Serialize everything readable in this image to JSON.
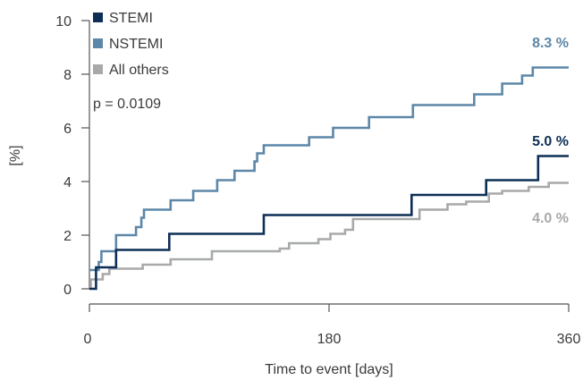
{
  "chart_data": {
    "type": "line",
    "step": true,
    "xlabel": "Time to event [days]",
    "ylabel": "[%]",
    "xlim": [
      0,
      360
    ],
    "ylim": [
      0,
      10
    ],
    "x_ticks": [
      "0",
      "180",
      "360"
    ],
    "y_ticks": [
      "0",
      "2",
      "4",
      "6",
      "8",
      "10"
    ],
    "annotation": "p = 0.0109",
    "legend_position": "top-left",
    "series": [
      {
        "name": "STEMI",
        "color": "#0d2f57",
        "end_label": "5.0 %",
        "points": [
          [
            0,
            0
          ],
          [
            5,
            0
          ],
          [
            5,
            0.8
          ],
          [
            20,
            0.8
          ],
          [
            20,
            1.45
          ],
          [
            60,
            1.45
          ],
          [
            60,
            2.05
          ],
          [
            131,
            2.05
          ],
          [
            131,
            2.75
          ],
          [
            242,
            2.75
          ],
          [
            242,
            3.5
          ],
          [
            298,
            3.5
          ],
          [
            298,
            4.05
          ],
          [
            337,
            4.05
          ],
          [
            337,
            4.95
          ],
          [
            360,
            4.95
          ]
        ]
      },
      {
        "name": "NSTEMI",
        "color": "#5d87a8",
        "end_label": "8.3 %",
        "points": [
          [
            0,
            0.7
          ],
          [
            7,
            0.7
          ],
          [
            7,
            1.0
          ],
          [
            9,
            1.0
          ],
          [
            9,
            1.4
          ],
          [
            20,
            1.4
          ],
          [
            20,
            2.0
          ],
          [
            35,
            2.0
          ],
          [
            35,
            2.3
          ],
          [
            39,
            2.3
          ],
          [
            39,
            2.65
          ],
          [
            41,
            2.65
          ],
          [
            41,
            2.95
          ],
          [
            61,
            2.95
          ],
          [
            61,
            3.3
          ],
          [
            78,
            3.3
          ],
          [
            78,
            3.65
          ],
          [
            96,
            3.65
          ],
          [
            96,
            4.05
          ],
          [
            109,
            4.05
          ],
          [
            109,
            4.4
          ],
          [
            124,
            4.4
          ],
          [
            124,
            4.75
          ],
          [
            126,
            4.75
          ],
          [
            126,
            5.05
          ],
          [
            131,
            5.05
          ],
          [
            131,
            5.35
          ],
          [
            165,
            5.35
          ],
          [
            165,
            5.65
          ],
          [
            183,
            5.65
          ],
          [
            183,
            6.0
          ],
          [
            210,
            6.0
          ],
          [
            210,
            6.4
          ],
          [
            243,
            6.4
          ],
          [
            243,
            6.85
          ],
          [
            289,
            6.85
          ],
          [
            289,
            7.25
          ],
          [
            310,
            7.25
          ],
          [
            310,
            7.65
          ],
          [
            325,
            7.65
          ],
          [
            325,
            7.95
          ],
          [
            333,
            7.95
          ],
          [
            333,
            8.25
          ],
          [
            360,
            8.25
          ]
        ]
      },
      {
        "name": "All others",
        "color": "#a8a9ab",
        "end_label": "4.0 %",
        "points": [
          [
            0,
            0.05
          ],
          [
            1,
            0.05
          ],
          [
            1,
            0.35
          ],
          [
            10,
            0.35
          ],
          [
            10,
            0.55
          ],
          [
            15,
            0.55
          ],
          [
            15,
            0.75
          ],
          [
            40,
            0.75
          ],
          [
            40,
            0.9
          ],
          [
            61,
            0.9
          ],
          [
            61,
            1.1
          ],
          [
            92,
            1.1
          ],
          [
            92,
            1.4
          ],
          [
            143,
            1.4
          ],
          [
            143,
            1.5
          ],
          [
            150,
            1.5
          ],
          [
            150,
            1.7
          ],
          [
            172,
            1.7
          ],
          [
            172,
            1.85
          ],
          [
            181,
            1.85
          ],
          [
            181,
            2.05
          ],
          [
            192,
            2.05
          ],
          [
            192,
            2.2
          ],
          [
            198,
            2.2
          ],
          [
            198,
            2.6
          ],
          [
            248,
            2.6
          ],
          [
            248,
            2.95
          ],
          [
            269,
            2.95
          ],
          [
            269,
            3.15
          ],
          [
            283,
            3.15
          ],
          [
            283,
            3.25
          ],
          [
            300,
            3.25
          ],
          [
            300,
            3.55
          ],
          [
            310,
            3.55
          ],
          [
            310,
            3.65
          ],
          [
            330,
            3.65
          ],
          [
            330,
            3.8
          ],
          [
            345,
            3.8
          ],
          [
            345,
            3.95
          ],
          [
            360,
            3.95
          ]
        ]
      }
    ]
  }
}
